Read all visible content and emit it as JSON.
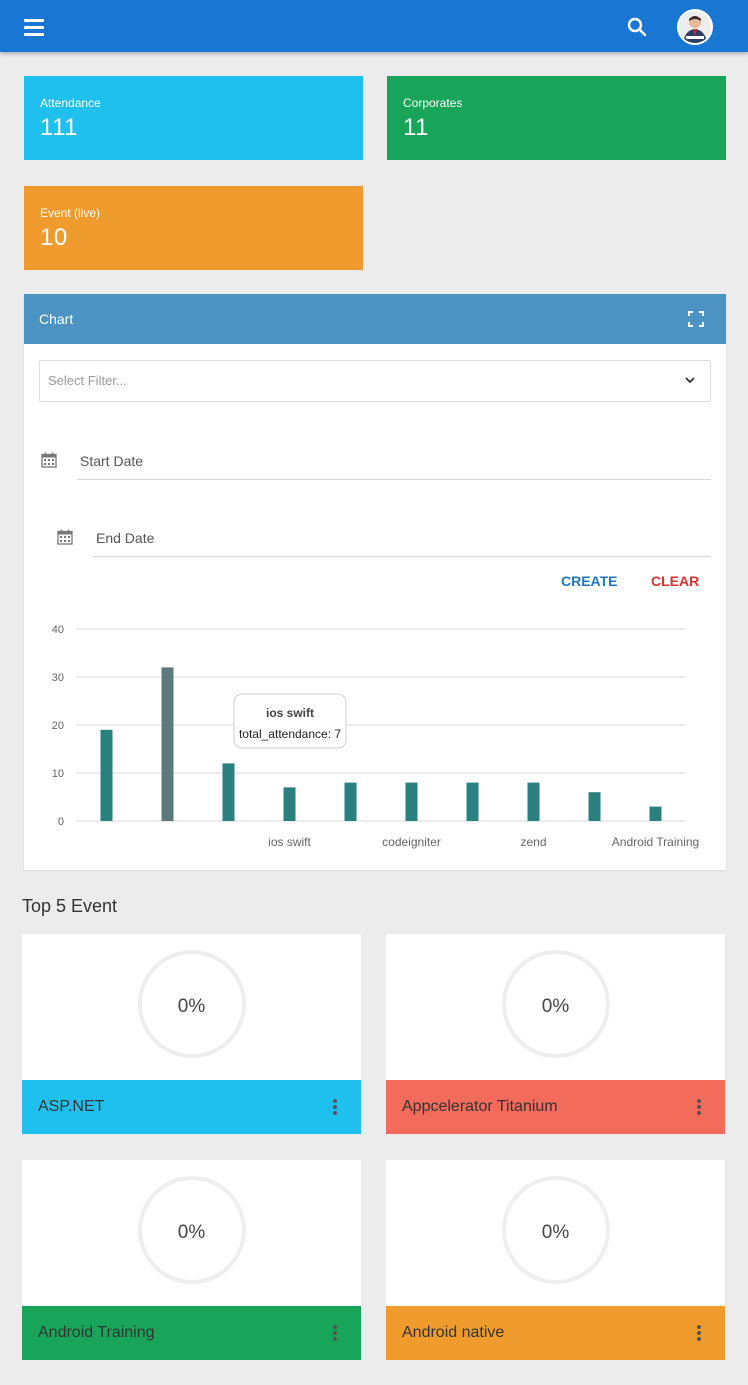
{
  "header": {
    "menu_icon": "hamburger-menu-icon",
    "search_icon": "search-icon",
    "avatar_icon": "user-avatar-icon",
    "brand_color": "#1976d2"
  },
  "stats": [
    {
      "label": "Attendance",
      "value": "111",
      "color": "#1fc0ee"
    },
    {
      "label": "Corporates",
      "value": "11",
      "color": "#18a55a"
    },
    {
      "label": "Event (live)",
      "value": "10",
      "color": "#f09b2d"
    }
  ],
  "chart_panel": {
    "title": "Chart",
    "expand_icon": "fullscreen-icon",
    "filter_placeholder": "Select Filter...",
    "start_date_placeholder": "Start Date",
    "end_date_placeholder": "End Date",
    "create_label": "CREATE",
    "clear_label": "CLEAR"
  },
  "chart_data": {
    "type": "bar",
    "categories": [
      "",
      "",
      "",
      "ios swift",
      "",
      "codeigniter",
      "",
      "zend",
      "",
      "Android Training"
    ],
    "series": [
      {
        "name": "total_attendance",
        "values": [
          19,
          32,
          12,
          7,
          8,
          8,
          8,
          8,
          6,
          3
        ]
      }
    ],
    "ylim": [
      0,
      40
    ],
    "yticks": [
      0,
      10,
      20,
      30,
      40
    ],
    "grid": true,
    "bar_color": "#2a7f7f",
    "highlight_color": "#5c7a7a",
    "highlighted_index": 1,
    "tooltip": {
      "title": "ios swift",
      "text": "total_attendance: 7"
    }
  },
  "top_events": {
    "title": "Top 5 Event",
    "items": [
      {
        "name": "ASP.NET",
        "percent": "0%",
        "color": "#1fc0ee"
      },
      {
        "name": "Appcelerator Titanium",
        "percent": "0%",
        "color": "#f36b5b"
      },
      {
        "name": "Android Training",
        "percent": "0%",
        "color": "#18a55a"
      },
      {
        "name": "Android native",
        "percent": "0%",
        "color": "#f09b2d"
      }
    ]
  }
}
